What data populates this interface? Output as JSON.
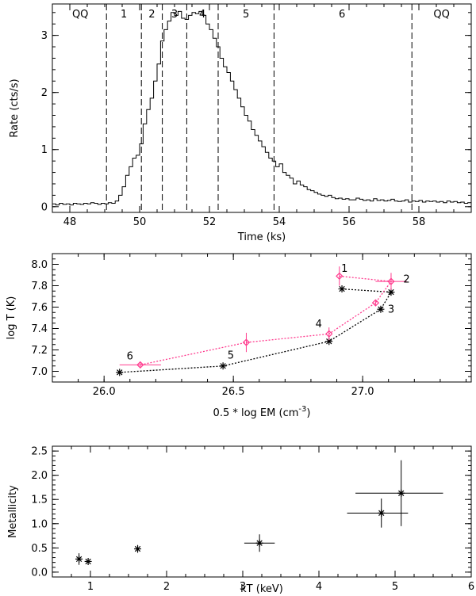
{
  "chart_data": [
    {
      "type": "line",
      "xlabel": "Time (ks)",
      "ylabel": "Rate (cts/s)",
      "xlim": [
        47.5,
        59.5
      ],
      "ylim": [
        -0.1,
        3.55
      ],
      "xticks": [
        48,
        50,
        52,
        54,
        56,
        58
      ],
      "yticks": [
        0,
        1,
        2,
        3
      ],
      "xtick_labels": [
        "48",
        "50",
        "52",
        "54",
        "56",
        "58"
      ],
      "ytick_labels": [
        "0",
        "1",
        "2",
        "3"
      ],
      "boundaries": [
        49.05,
        50.05,
        50.65,
        51.35,
        52.25,
        53.85,
        57.8
      ],
      "segments": [
        {
          "label": "QQ",
          "x": 48.3
        },
        {
          "label": "1",
          "x": 49.55
        },
        {
          "label": "2",
          "x": 50.35
        },
        {
          "label": "3",
          "x": 51.0
        },
        {
          "label": "4",
          "x": 51.8
        },
        {
          "label": "5",
          "x": 53.05
        },
        {
          "label": "6",
          "x": 55.8
        },
        {
          "label": "QQ",
          "x": 58.65
        }
      ],
      "series": [
        {
          "name": "light curve",
          "step": 0.1,
          "x_start": 47.5,
          "values": [
            0.05,
            0.03,
            0.06,
            0.04,
            0.05,
            0.03,
            0.06,
            0.05,
            0.04,
            0.06,
            0.05,
            0.07,
            0.06,
            0.04,
            0.06,
            0.05,
            0.07,
            0.06,
            0.1,
            0.2,
            0.35,
            0.55,
            0.7,
            0.85,
            0.9,
            1.1,
            1.45,
            1.7,
            1.9,
            2.2,
            2.5,
            2.9,
            3.1,
            3.25,
            3.4,
            3.35,
            3.42,
            3.3,
            3.28,
            3.35,
            3.4,
            3.38,
            3.42,
            3.35,
            3.2,
            3.1,
            2.95,
            2.8,
            2.6,
            2.45,
            2.35,
            2.2,
            2.05,
            1.9,
            1.75,
            1.6,
            1.5,
            1.35,
            1.25,
            1.15,
            1.05,
            0.95,
            0.85,
            0.8,
            0.7,
            0.75,
            0.6,
            0.55,
            0.5,
            0.4,
            0.45,
            0.38,
            0.35,
            0.3,
            0.28,
            0.25,
            0.22,
            0.2,
            0.18,
            0.2,
            0.16,
            0.14,
            0.15,
            0.13,
            0.14,
            0.12,
            0.12,
            0.15,
            0.13,
            0.11,
            0.12,
            0.1,
            0.14,
            0.11,
            0.12,
            0.1,
            0.11,
            0.13,
            0.1,
            0.09,
            0.1,
            0.12,
            0.08,
            0.1,
            0.09,
            0.11,
            0.08,
            0.1,
            0.09,
            0.1,
            0.08,
            0.09,
            0.07,
            0.1,
            0.08,
            0.09,
            0.07,
            0.08,
            0.06,
            0.07
          ]
        }
      ]
    },
    {
      "type": "line",
      "xlabel": "0.5 * log EM (cm",
      "xlabel_sup": "-3",
      "xlabel_tail": ")",
      "ylabel": "log T (K)",
      "xlim": [
        25.8,
        27.42
      ],
      "ylim": [
        6.9,
        8.1
      ],
      "xticks": [
        26.0,
        26.5,
        27.0
      ],
      "yticks": [
        7.0,
        7.2,
        7.4,
        7.6,
        7.8,
        8.0
      ],
      "xtick_labels": [
        "26.0",
        "26.5",
        "27.0"
      ],
      "ytick_labels": [
        "7.0",
        "7.2",
        "7.4",
        "7.6",
        "7.8",
        "8.0"
      ],
      "series": [
        {
          "name": "pink diamonds",
          "color": "#ff3b8e",
          "marker": "diamond",
          "x": [
            26.91,
            27.11,
            27.05,
            26.87,
            26.55,
            26.14
          ],
          "y": [
            7.89,
            7.84,
            7.64,
            7.35,
            7.27,
            7.06
          ],
          "xerr": [
            0.0,
            0.06,
            0.0,
            0.0,
            0.0,
            0.08
          ],
          "yerr": [
            0.09,
            0.08,
            0.03,
            0.06,
            0.09,
            0.03
          ]
        },
        {
          "name": "black stars",
          "color": "#000000",
          "marker": "star",
          "x": [
            26.92,
            27.11,
            27.07,
            26.87,
            26.46,
            26.06
          ],
          "y": [
            7.77,
            7.74,
            7.58,
            7.28,
            7.05,
            6.99
          ]
        }
      ],
      "point_labels": [
        {
          "text": "1",
          "x": 26.93,
          "y": 7.93
        },
        {
          "text": "2",
          "x": 27.17,
          "y": 7.83
        },
        {
          "text": "3",
          "x": 27.11,
          "y": 7.55
        },
        {
          "text": "4",
          "x": 26.83,
          "y": 7.41
        },
        {
          "text": "5",
          "x": 26.49,
          "y": 7.12
        },
        {
          "text": "6",
          "x": 26.1,
          "y": 7.11
        }
      ]
    },
    {
      "type": "scatter",
      "xlabel": "kT (keV)",
      "ylabel": "Metallicity",
      "xlim": [
        0.5,
        6.0
      ],
      "ylim": [
        -0.1,
        2.6
      ],
      "xticks": [
        1,
        2,
        3,
        4,
        5,
        6
      ],
      "yticks": [
        0.0,
        0.5,
        1.0,
        1.5,
        2.0,
        2.5
      ],
      "xtick_labels": [
        "1",
        "2",
        "3",
        "4",
        "5",
        "6"
      ],
      "ytick_labels": [
        "0.0",
        "0.5",
        "1.0",
        "1.5",
        "2.0",
        "2.5"
      ],
      "series": [
        {
          "name": "metallicity vs kT",
          "color": "#000000",
          "marker": "star",
          "x": [
            0.85,
            0.97,
            1.62,
            3.22,
            4.82,
            5.08
          ],
          "y": [
            0.27,
            0.22,
            0.48,
            0.6,
            1.22,
            1.63
          ],
          "xerr_lo": [
            0.0,
            0.0,
            0.0,
            0.2,
            0.45,
            0.6
          ],
          "xerr_hi": [
            0.0,
            0.0,
            0.0,
            0.2,
            0.35,
            0.55
          ],
          "yerr": [
            0.12,
            0.0,
            0.08,
            0.18,
            0.3,
            0.68
          ]
        }
      ]
    }
  ]
}
